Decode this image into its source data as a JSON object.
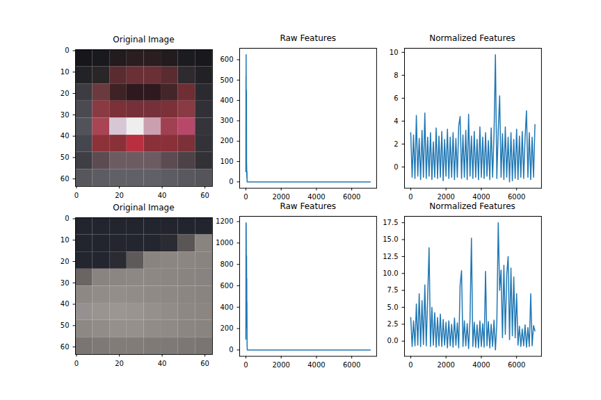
{
  "chart_data": [
    {
      "type": "image",
      "title": "Original Image",
      "xlim": [
        -0.5,
        63.5
      ],
      "ylim": [
        63.5,
        -0.5
      ],
      "xticks": [
        0,
        20,
        40,
        60
      ],
      "yticks": [
        0,
        10,
        20,
        30,
        40,
        50,
        60
      ],
      "cells": [
        [
          "#17171b",
          "#1a1a1e",
          "#221c1e",
          "#2a1e20",
          "#2a1e20",
          "#221c1e",
          "#1c1c20",
          "#19191d"
        ],
        [
          "#232327",
          "#2a2628",
          "#5a2c32",
          "#6a3036",
          "#6a3036",
          "#5a2c32",
          "#2e2a2e",
          "#222226"
        ],
        [
          "#3c3c42",
          "#6a3a3e",
          "#3e2226",
          "#2e1a1e",
          "#2e1a1e",
          "#44262a",
          "#6e2e34",
          "#2a2a30"
        ],
        [
          "#4a4a50",
          "#8a3a42",
          "#7c3038",
          "#76303a",
          "#76303a",
          "#7c3038",
          "#8a3a42",
          "#303036"
        ],
        [
          "#52525a",
          "#a84454",
          "#d6c6d6",
          "#eeeeee",
          "#caa0b0",
          "#a04050",
          "#b8486a",
          "#34343a"
        ],
        [
          "#46464e",
          "#8c3238",
          "#8a3038",
          "#b83040",
          "#8a3038",
          "#8a3038",
          "#7c3038",
          "#323238"
        ],
        [
          "#3e3e44",
          "#5c4c52",
          "#6c5c62",
          "#6c5c62",
          "#6c5c62",
          "#5c4c52",
          "#4c4248",
          "#323236"
        ],
        [
          "#56565c",
          "#5c5c62",
          "#606066",
          "#606066",
          "#606066",
          "#5c5c62",
          "#58585e",
          "#54545a"
        ]
      ]
    },
    {
      "type": "line",
      "title": "Raw Features",
      "color": "#1f77b4",
      "xlim": [
        -353,
        7408
      ],
      "ylim": [
        -31.25,
        656.25
      ],
      "xticks": [
        0,
        2000,
        4000,
        6000
      ],
      "yticks": [
        0,
        100,
        200,
        300,
        400,
        500,
        600
      ],
      "x": [
        0,
        6,
        10,
        16,
        22,
        28,
        34,
        40,
        48,
        56,
        64,
        72,
        96,
        7055
      ],
      "values": [
        50,
        520,
        300,
        625,
        200,
        440,
        450,
        100,
        60,
        20,
        50,
        0,
        0,
        0
      ]
    },
    {
      "type": "line",
      "title": "Normalized Features",
      "color": "#1f77b4",
      "xlim": [
        -353,
        7408
      ],
      "ylim": [
        -1.855,
        10.355
      ],
      "xticks": [
        0,
        2000,
        4000,
        6000
      ],
      "yticks": [
        0,
        2,
        4,
        6,
        8,
        10
      ],
      "x": [
        0,
        80,
        160,
        240,
        320,
        400,
        480,
        560,
        640,
        720,
        800,
        880,
        960,
        1040,
        1120,
        1200,
        1280,
        1360,
        1440,
        1520,
        1600,
        1680,
        1760,
        1840,
        1920,
        2000,
        2080,
        2160,
        2240,
        2320,
        2400,
        2480,
        2560,
        2640,
        2720,
        2800,
        2880,
        2960,
        3040,
        3120,
        3200,
        3280,
        3360,
        3440,
        3520,
        3600,
        3680,
        3760,
        3840,
        3920,
        4000,
        4080,
        4160,
        4240,
        4320,
        4400,
        4480,
        4560,
        4640,
        4720,
        4800,
        4880,
        4960,
        5040,
        5120,
        5200,
        5280,
        5360,
        5440,
        5520,
        5600,
        5680,
        5760,
        5840,
        5920,
        6000,
        6080,
        6160,
        6240,
        6320,
        6400,
        6480,
        6560,
        6640,
        6720,
        6800,
        6880,
        6960,
        7040
      ],
      "values": [
        3.0,
        -0.9,
        2.8,
        -1.0,
        4.5,
        -0.8,
        2.5,
        -1.1,
        3.2,
        -0.9,
        4.7,
        -1.0,
        2.6,
        -0.8,
        3.0,
        -1.1,
        2.2,
        -0.9,
        3.4,
        -1.0,
        2.7,
        -0.9,
        3.1,
        -1.2,
        2.4,
        -0.8,
        3.3,
        -1.0,
        2.6,
        -0.9,
        3.0,
        -1.1,
        2.5,
        -0.9,
        3.6,
        4.4,
        -1.0,
        2.8,
        -0.9,
        3.2,
        -1.1,
        4.6,
        -0.8,
        2.7,
        -1.0,
        3.1,
        -0.9,
        2.4,
        -1.1,
        3.5,
        -0.9,
        2.6,
        -1.0,
        3.0,
        -0.8,
        2.3,
        -1.1,
        3.4,
        -0.9,
        2.8,
        9.8,
        -1.0,
        3.2,
        6.2,
        -0.9,
        2.9,
        -1.1,
        3.5,
        -0.9,
        2.6,
        -1.3,
        3.0,
        -1.2,
        2.4,
        -1.0,
        3.3,
        -1.1,
        2.7,
        -0.9,
        3.1,
        -1.0,
        2.5,
        4.9,
        -0.9,
        3.0,
        -1.1,
        2.6,
        -0.9,
        3.7
      ]
    },
    {
      "type": "image",
      "title": "Original Image",
      "xlim": [
        -0.5,
        63.5
      ],
      "ylim": [
        63.5,
        -0.5
      ],
      "xticks": [
        0,
        20,
        40,
        60
      ],
      "yticks": [
        0,
        10,
        20,
        30,
        40,
        50,
        60
      ],
      "cells": [
        [
          "#22242e",
          "#22242e",
          "#22242e",
          "#22242e",
          "#22242e",
          "#22242e",
          "#22242e",
          "#22242e"
        ],
        [
          "#22242e",
          "#22242e",
          "#23252f",
          "#23252f",
          "#24262f",
          "#2a2b33",
          "#5a5656",
          "#8a8480"
        ],
        [
          "#23252f",
          "#24262f",
          "#2a2b33",
          "#5e5a5a",
          "#8a8480",
          "#8c8682",
          "#8c8682",
          "#8a8480"
        ],
        [
          "#6a6462",
          "#8a8480",
          "#8c8682",
          "#8e8884",
          "#8e8884",
          "#8c8682",
          "#8a8480",
          "#888280"
        ],
        [
          "#8e8884",
          "#928c88",
          "#948e8a",
          "#928c88",
          "#908a86",
          "#8e8884",
          "#8c8682",
          "#8a8480"
        ],
        [
          "#969090",
          "#9a9490",
          "#9c9692",
          "#9a9490",
          "#96908c",
          "#928c88",
          "#8e8884",
          "#8c8682"
        ],
        [
          "#8e8884",
          "#928c88",
          "#96908c",
          "#96908c",
          "#928c88",
          "#908a86",
          "#8c8682",
          "#8a8480"
        ],
        [
          "#7a7572",
          "#7e7976",
          "#827c78",
          "#827c78",
          "#807a76",
          "#7e7976",
          "#7c7774",
          "#7a7572"
        ]
      ]
    },
    {
      "type": "line",
      "title": "Raw Features",
      "color": "#1f77b4",
      "xlim": [
        -353,
        7408
      ],
      "ylim": [
        -59.5,
        1249.5
      ],
      "xticks": [
        0,
        2000,
        4000,
        6000
      ],
      "yticks": [
        0,
        200,
        400,
        600,
        800,
        1000,
        1200
      ],
      "x": [
        0,
        8,
        14,
        20,
        26,
        32,
        40,
        46,
        52,
        58,
        62,
        70,
        80,
        7055
      ],
      "values": [
        100,
        1180,
        1190,
        1150,
        800,
        600,
        880,
        300,
        670,
        200,
        450,
        50,
        0,
        0
      ]
    },
    {
      "type": "line",
      "title": "Normalized Features",
      "color": "#1f77b4",
      "xlim": [
        -353,
        7408
      ],
      "ylim": [
        -2.24,
        18.44
      ],
      "xticks": [
        0,
        2000,
        4000,
        6000
      ],
      "yticks": [
        {
          "value": 0,
          "label": "0.0"
        },
        2.5,
        {
          "value": 5,
          "label": "5.0"
        },
        7.5,
        {
          "value": 10,
          "label": "10.0"
        },
        12.5,
        {
          "value": 15,
          "label": "15.0"
        },
        17.5
      ],
      "x": [
        0,
        80,
        160,
        240,
        320,
        400,
        480,
        560,
        640,
        720,
        800,
        880,
        960,
        1040,
        1120,
        1200,
        1280,
        1360,
        1440,
        1520,
        1600,
        1680,
        1760,
        1840,
        1920,
        2000,
        2080,
        2160,
        2240,
        2320,
        2400,
        2480,
        2560,
        2640,
        2720,
        2800,
        2880,
        2960,
        3040,
        3120,
        3200,
        3280,
        3360,
        3440,
        3520,
        3600,
        3680,
        3760,
        3840,
        3920,
        4000,
        4080,
        4160,
        4240,
        4320,
        4400,
        4480,
        4560,
        4640,
        4720,
        4800,
        4880,
        4960,
        5040,
        5120,
        5200,
        5280,
        5360,
        5440,
        5520,
        5600,
        5680,
        5760,
        5840,
        5920,
        6000,
        6080,
        6160,
        6240,
        6320,
        6400,
        6480,
        6560,
        6640,
        6720,
        6800,
        6880,
        6960,
        7040
      ],
      "values": [
        3.5,
        -0.8,
        3.0,
        -0.7,
        5.5,
        -0.6,
        7.0,
        -0.8,
        6.0,
        -0.5,
        8.3,
        -0.7,
        6.5,
        13.8,
        -0.8,
        5.0,
        -0.6,
        4.2,
        -0.9,
        3.5,
        -0.7,
        4.0,
        -0.8,
        3.2,
        -0.6,
        2.8,
        -1.0,
        3.0,
        -0.7,
        2.5,
        -0.9,
        3.4,
        -0.6,
        2.7,
        -1.0,
        8.3,
        10.4,
        -0.8,
        3.0,
        -0.7,
        2.6,
        -1.1,
        3.2,
        15.2,
        -0.8,
        2.8,
        -0.9,
        2.4,
        -1.0,
        3.0,
        -0.8,
        2.6,
        -0.9,
        10.3,
        -0.7,
        2.9,
        -1.0,
        2.5,
        -0.8,
        3.1,
        -1.3,
        2.7,
        17.5,
        7.5,
        10.5,
        0.5,
        11.2,
        1.0,
        9.8,
        12.5,
        0.2,
        10.8,
        0.8,
        9.5,
        0.5,
        7.0,
        -0.6,
        2.2,
        -0.8,
        1.8,
        -0.7,
        2.4,
        -0.9,
        2.0,
        -0.8,
        7.0,
        -0.7,
        2.3,
        1.5
      ]
    }
  ]
}
